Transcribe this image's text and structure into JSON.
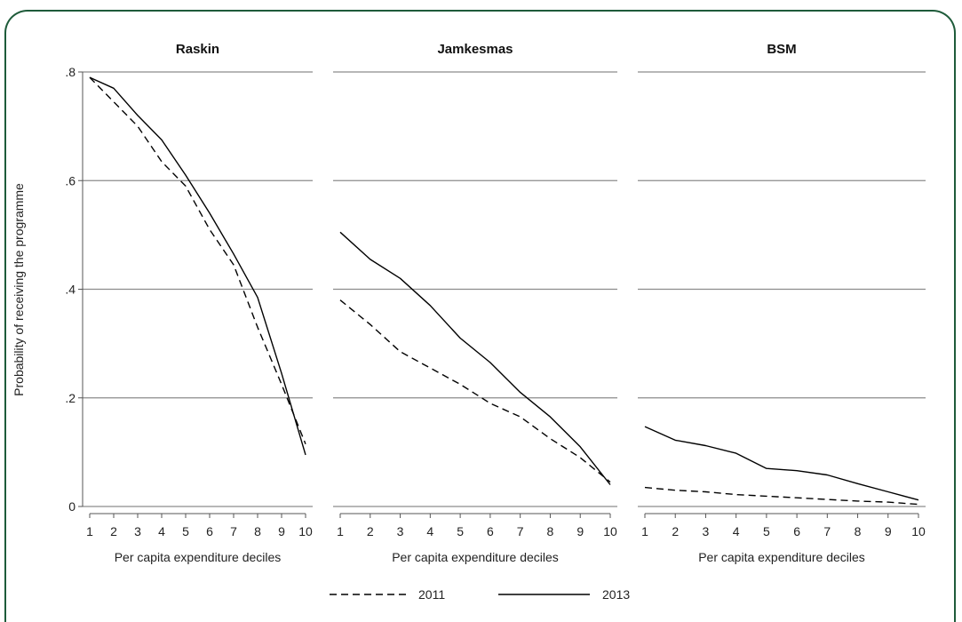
{
  "chart_data": {
    "type": "line",
    "ylabel": "Probability of receiving the programme",
    "yticks": [
      {
        "value": 0,
        "label": "0"
      },
      {
        "value": 0.2,
        "label": ".2"
      },
      {
        "value": 0.4,
        "label": ".4"
      },
      {
        "value": 0.6,
        "label": ".6"
      },
      {
        "value": 0.8,
        "label": ".8"
      }
    ],
    "ylim": [
      0,
      0.8
    ],
    "x": [
      1,
      2,
      3,
      4,
      5,
      6,
      7,
      8,
      9,
      10
    ],
    "xlabel": "Per capita expenditure deciles",
    "grid": true,
    "legend_position": "bottom",
    "series_styles": [
      {
        "name": "2011",
        "dash": "8,5",
        "color": "#000000"
      },
      {
        "name": "2013",
        "dash": "",
        "color": "#000000"
      }
    ],
    "panels": [
      {
        "title": "Raskin",
        "series": [
          {
            "name": "2011",
            "values": [
              0.79,
              0.745,
              0.7,
              0.635,
              0.59,
              0.51,
              0.445,
              0.33,
              0.225,
              0.115
            ]
          },
          {
            "name": "2013",
            "values": [
              0.79,
              0.77,
              0.72,
              0.675,
              0.61,
              0.54,
              0.465,
              0.385,
              0.245,
              0.095
            ]
          }
        ]
      },
      {
        "title": "Jamkesmas",
        "series": [
          {
            "name": "2011",
            "values": [
              0.38,
              0.335,
              0.285,
              0.255,
              0.225,
              0.19,
              0.165,
              0.125,
              0.09,
              0.045
            ]
          },
          {
            "name": "2013",
            "values": [
              0.505,
              0.455,
              0.42,
              0.37,
              0.31,
              0.265,
              0.21,
              0.165,
              0.11,
              0.04
            ]
          }
        ]
      },
      {
        "title": "BSM",
        "series": [
          {
            "name": "2011",
            "values": [
              0.035,
              0.03,
              0.027,
              0.022,
              0.019,
              0.016,
              0.013,
              0.01,
              0.008,
              0.004
            ]
          },
          {
            "name": "2013",
            "values": [
              0.147,
              0.122,
              0.112,
              0.098,
              0.07,
              0.066,
              0.058,
              0.042,
              0.027,
              0.012
            ]
          }
        ]
      }
    ]
  }
}
